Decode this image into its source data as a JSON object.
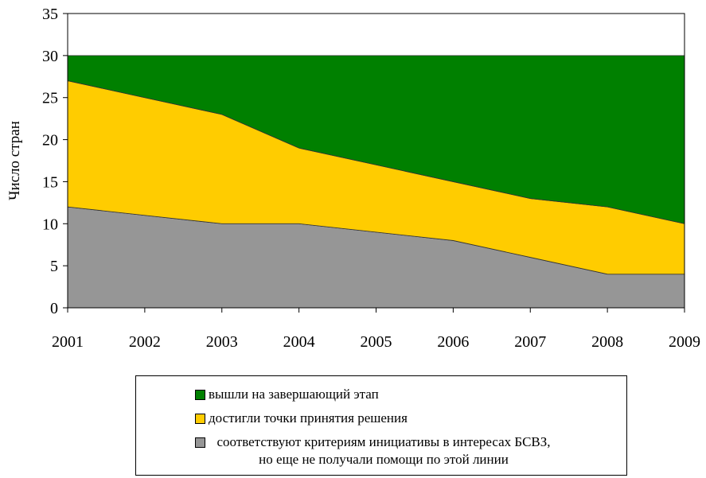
{
  "chart_data": {
    "type": "stacked_area",
    "y_label": "Число стран",
    "categories": [
      "2001",
      "2002",
      "2003",
      "2004",
      "2005",
      "2006",
      "2007",
      "2008",
      "2009"
    ],
    "series": [
      {
        "name": "соответствуют критериям инициативы в интересах БСВЗ, но еще не получали помощи по этой линии",
        "color": "#969696",
        "values": [
          12,
          11,
          10,
          10,
          9,
          8,
          6,
          4,
          4
        ]
      },
      {
        "name": "достигли точки принятия решения",
        "color": "#ffcc00",
        "values": [
          15,
          14,
          13,
          9,
          8,
          7,
          7,
          8,
          6
        ]
      },
      {
        "name": "вышли на завершающий этап",
        "color": "#008000",
        "values": [
          3,
          5,
          7,
          11,
          13,
          15,
          17,
          18,
          20
        ]
      }
    ],
    "ylim": [
      0,
      35
    ],
    "yticks": [
      0,
      5,
      10,
      15,
      20,
      25,
      30,
      35
    ]
  }
}
